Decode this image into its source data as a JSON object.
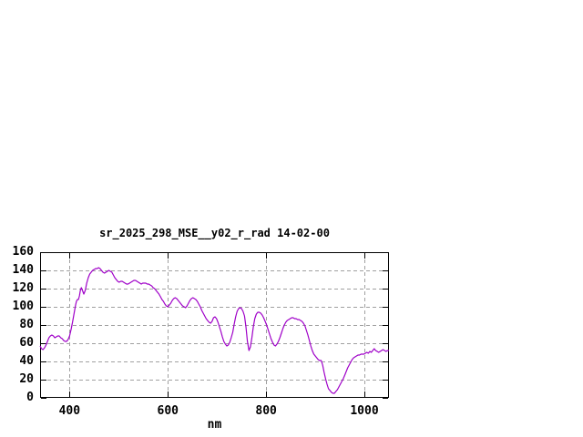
{
  "window": {
    "background": "#ffffff"
  },
  "colors": {
    "line": "#9f00c8",
    "grid": "#a0a0a0",
    "frame": "#000000",
    "text": "#000000"
  },
  "chart_data": {
    "type": "line",
    "title": "sr_2025_298_MSE__y02_r_rad 14-02-00",
    "xlabel": "nm",
    "ylabel": "",
    "xlim": [
      340,
      1050
    ],
    "ylim": [
      0,
      160
    ],
    "xticks": [
      400,
      600,
      800,
      1000
    ],
    "yticks": [
      0,
      20,
      40,
      60,
      80,
      100,
      120,
      140,
      160
    ],
    "grid": true,
    "legend_position": "none",
    "series": [
      {
        "name": "sr_2025_298_MSE__y02_r_rad",
        "color": "#9f00c8",
        "points": [
          [
            340,
            57
          ],
          [
            343,
            54
          ],
          [
            346,
            53
          ],
          [
            349,
            55
          ],
          [
            352,
            58
          ],
          [
            355,
            62
          ],
          [
            358,
            66
          ],
          [
            361,
            68
          ],
          [
            364,
            69
          ],
          [
            367,
            68
          ],
          [
            370,
            66
          ],
          [
            373,
            67
          ],
          [
            376,
            68
          ],
          [
            379,
            68
          ],
          [
            382,
            66
          ],
          [
            385,
            65
          ],
          [
            388,
            63
          ],
          [
            391,
            62
          ],
          [
            394,
            62
          ],
          [
            397,
            64
          ],
          [
            400,
            68
          ],
          [
            403,
            75
          ],
          [
            406,
            83
          ],
          [
            409,
            92
          ],
          [
            412,
            101
          ],
          [
            414,
            106
          ],
          [
            416,
            108
          ],
          [
            418,
            108
          ],
          [
            420,
            112
          ],
          [
            422,
            118
          ],
          [
            424,
            121
          ],
          [
            427,
            117
          ],
          [
            429,
            114
          ],
          [
            432,
            118
          ],
          [
            435,
            126
          ],
          [
            438,
            132
          ],
          [
            441,
            136
          ],
          [
            444,
            138
          ],
          [
            447,
            140
          ],
          [
            450,
            141
          ],
          [
            453,
            142
          ],
          [
            456,
            142
          ],
          [
            459,
            143
          ],
          [
            462,
            142
          ],
          [
            465,
            140
          ],
          [
            468,
            138
          ],
          [
            471,
            137
          ],
          [
            474,
            138
          ],
          [
            477,
            139
          ],
          [
            480,
            140
          ],
          [
            483,
            139
          ],
          [
            486,
            138
          ],
          [
            489,
            135
          ],
          [
            492,
            132
          ],
          [
            495,
            130
          ],
          [
            498,
            128
          ],
          [
            501,
            127
          ],
          [
            504,
            128
          ],
          [
            507,
            128
          ],
          [
            510,
            127
          ],
          [
            513,
            126
          ],
          [
            516,
            125
          ],
          [
            519,
            125
          ],
          [
            522,
            126
          ],
          [
            525,
            127
          ],
          [
            528,
            128
          ],
          [
            531,
            129
          ],
          [
            534,
            129
          ],
          [
            537,
            128
          ],
          [
            540,
            127
          ],
          [
            543,
            126
          ],
          [
            546,
            125
          ],
          [
            549,
            126
          ],
          [
            552,
            126
          ],
          [
            555,
            126
          ],
          [
            558,
            125
          ],
          [
            561,
            125
          ],
          [
            564,
            124
          ],
          [
            567,
            123
          ],
          [
            570,
            121
          ],
          [
            573,
            120
          ],
          [
            576,
            118
          ],
          [
            579,
            116
          ],
          [
            582,
            114
          ],
          [
            585,
            111
          ],
          [
            588,
            108
          ],
          [
            591,
            106
          ],
          [
            594,
            103
          ],
          [
            597,
            101
          ],
          [
            600,
            100
          ],
          [
            603,
            102
          ],
          [
            606,
            104
          ],
          [
            609,
            107
          ],
          [
            612,
            109
          ],
          [
            615,
            110
          ],
          [
            618,
            109
          ],
          [
            621,
            107
          ],
          [
            624,
            105
          ],
          [
            627,
            103
          ],
          [
            630,
            101
          ],
          [
            633,
            100
          ],
          [
            636,
            99
          ],
          [
            639,
            101
          ],
          [
            642,
            104
          ],
          [
            645,
            107
          ],
          [
            648,
            109
          ],
          [
            651,
            110
          ],
          [
            654,
            109
          ],
          [
            657,
            108
          ],
          [
            660,
            106
          ],
          [
            663,
            103
          ],
          [
            666,
            100
          ],
          [
            669,
            96
          ],
          [
            672,
            93
          ],
          [
            675,
            90
          ],
          [
            678,
            87
          ],
          [
            681,
            85
          ],
          [
            684,
            83
          ],
          [
            687,
            82
          ],
          [
            690,
            84
          ],
          [
            693,
            88
          ],
          [
            696,
            89
          ],
          [
            699,
            87
          ],
          [
            702,
            83
          ],
          [
            705,
            78
          ],
          [
            708,
            73
          ],
          [
            711,
            67
          ],
          [
            714,
            62
          ],
          [
            717,
            59
          ],
          [
            720,
            57
          ],
          [
            723,
            58
          ],
          [
            726,
            61
          ],
          [
            729,
            66
          ],
          [
            732,
            72
          ],
          [
            735,
            81
          ],
          [
            738,
            89
          ],
          [
            741,
            95
          ],
          [
            744,
            98
          ],
          [
            747,
            99
          ],
          [
            750,
            98
          ],
          [
            753,
            95
          ],
          [
            756,
            90
          ],
          [
            759,
            78
          ],
          [
            762,
            62
          ],
          [
            765,
            52
          ],
          [
            768,
            56
          ],
          [
            771,
            66
          ],
          [
            774,
            78
          ],
          [
            777,
            87
          ],
          [
            780,
            92
          ],
          [
            783,
            94
          ],
          [
            786,
            94
          ],
          [
            789,
            93
          ],
          [
            792,
            91
          ],
          [
            795,
            88
          ],
          [
            798,
            84
          ],
          [
            801,
            80
          ],
          [
            804,
            75
          ],
          [
            807,
            70
          ],
          [
            810,
            65
          ],
          [
            813,
            61
          ],
          [
            816,
            58
          ],
          [
            819,
            57
          ],
          [
            822,
            59
          ],
          [
            825,
            62
          ],
          [
            828,
            66
          ],
          [
            831,
            71
          ],
          [
            834,
            76
          ],
          [
            837,
            80
          ],
          [
            840,
            83
          ],
          [
            843,
            85
          ],
          [
            846,
            86
          ],
          [
            849,
            87
          ],
          [
            852,
            88
          ],
          [
            855,
            88
          ],
          [
            858,
            87
          ],
          [
            861,
            87
          ],
          [
            864,
            86
          ],
          [
            867,
            86
          ],
          [
            870,
            85
          ],
          [
            873,
            84
          ],
          [
            876,
            82
          ],
          [
            879,
            79
          ],
          [
            882,
            74
          ],
          [
            885,
            69
          ],
          [
            888,
            63
          ],
          [
            891,
            57
          ],
          [
            894,
            52
          ],
          [
            897,
            48
          ],
          [
            900,
            46
          ],
          [
            903,
            44
          ],
          [
            906,
            42
          ],
          [
            909,
            41
          ],
          [
            912,
            41
          ],
          [
            915,
            36
          ],
          [
            918,
            28
          ],
          [
            921,
            21
          ],
          [
            924,
            15
          ],
          [
            927,
            10
          ],
          [
            930,
            8
          ],
          [
            933,
            6
          ],
          [
            936,
            5
          ],
          [
            939,
            5
          ],
          [
            942,
            7
          ],
          [
            945,
            9
          ],
          [
            948,
            12
          ],
          [
            951,
            15
          ],
          [
            954,
            18
          ],
          [
            957,
            21
          ],
          [
            960,
            25
          ],
          [
            963,
            29
          ],
          [
            966,
            33
          ],
          [
            969,
            36
          ],
          [
            972,
            39
          ],
          [
            975,
            42
          ],
          [
            978,
            44
          ],
          [
            981,
            45
          ],
          [
            984,
            46
          ],
          [
            987,
            47
          ],
          [
            990,
            47
          ],
          [
            993,
            48
          ],
          [
            996,
            48
          ],
          [
            999,
            48
          ],
          [
            1002,
            49
          ],
          [
            1005,
            50
          ],
          [
            1008,
            49
          ],
          [
            1011,
            51
          ],
          [
            1014,
            50
          ],
          [
            1017,
            52
          ],
          [
            1020,
            54
          ],
          [
            1023,
            52
          ],
          [
            1026,
            51
          ],
          [
            1029,
            50
          ],
          [
            1032,
            51
          ],
          [
            1035,
            52
          ],
          [
            1038,
            53
          ],
          [
            1041,
            52
          ],
          [
            1044,
            51
          ],
          [
            1047,
            52
          ],
          [
            1050,
            52
          ]
        ]
      }
    ]
  }
}
